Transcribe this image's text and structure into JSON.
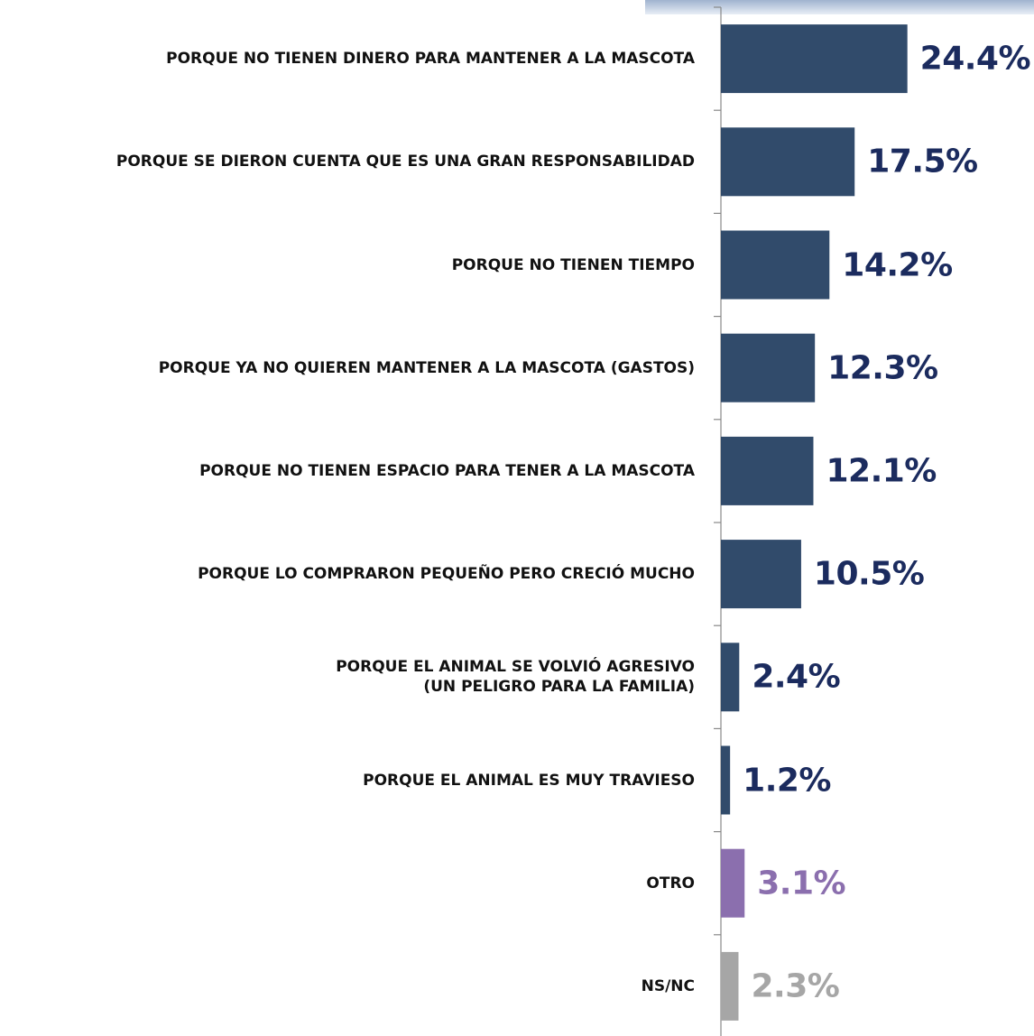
{
  "chart_data": {
    "type": "bar",
    "orientation": "horizontal",
    "categories": [
      "PORQUE NO TIENEN DINERO PARA MANTENER A LA MASCOTA",
      "PORQUE SE DIERON CUENTA QUE ES UNA GRAN RESPONSABILIDAD",
      "PORQUE NO TIENEN TIEMPO",
      "PORQUE YA NO QUIEREN MANTENER A LA MASCOTA (GASTOS)",
      "PORQUE NO TIENEN ESPACIO PARA TENER A LA MASCOTA",
      "PORQUE LO COMPRARON PEQUEÑO PERO CRECIÓ MUCHO",
      "PORQUE EL ANIMAL SE VOLVIÓ AGRESIVO\n(UN PELIGRO PARA LA FAMILIA)",
      "PORQUE EL ANIMAL ES MUY TRAVIESO",
      "OTRO",
      "NS/NC"
    ],
    "values": [
      24.4,
      17.5,
      14.2,
      12.3,
      12.1,
      10.5,
      2.4,
      1.2,
      3.1,
      2.3
    ],
    "value_labels": [
      "24.4%",
      "17.5%",
      "14.2%",
      "12.3%",
      "12.1%",
      "10.5%",
      "2.4%",
      "1.2%",
      "3.1%",
      "2.3%"
    ],
    "colors": [
      "#314b6b",
      "#314b6b",
      "#314b6b",
      "#314b6b",
      "#314b6b",
      "#314b6b",
      "#314b6b",
      "#314b6b",
      "#8b6fae",
      "#a6a6a6"
    ],
    "label_colors": [
      "#1b2b5e",
      "#1b2b5e",
      "#1b2b5e",
      "#1b2b5e",
      "#1b2b5e",
      "#1b2b5e",
      "#1b2b5e",
      "#1b2b5e",
      "#8b6fae",
      "#a6a6a6"
    ]
  }
}
